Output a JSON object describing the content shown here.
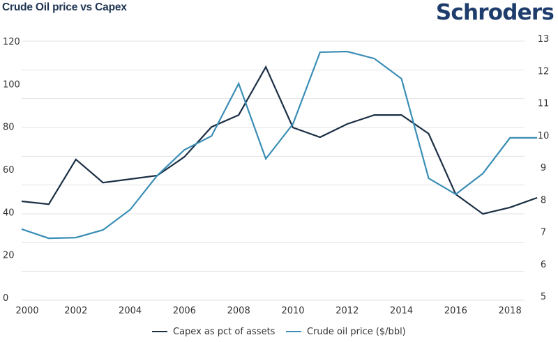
{
  "header": {
    "title": "Crude Oil price vs Capex",
    "logo_text": "Schroders"
  },
  "colors": {
    "capex": "#1b2f45",
    "oil": "#3a8db5",
    "logo": "#1e3c6c",
    "title": "#1d3350"
  },
  "chart_data": {
    "type": "line",
    "title": "Crude Oil price vs Capex",
    "xlabel": "",
    "ylabel_left": "",
    "ylabel_right": "",
    "x": [
      2000,
      2001,
      2002,
      2003,
      2004,
      2005,
      2006,
      2007,
      2008,
      2009,
      2010,
      2011,
      2012,
      2013,
      2014,
      2015,
      2016,
      2017,
      2018,
      2019
    ],
    "x_tick_labels": [
      "2000",
      "2002",
      "2004",
      "2006",
      "2008",
      "2010",
      "2012",
      "2014",
      "2016",
      "2018"
    ],
    "y_left_ticks": [
      "0",
      "20",
      "40",
      "60",
      "80",
      "100",
      "120"
    ],
    "y_right_ticks": [
      "5",
      "6",
      "7",
      "8",
      "9",
      "10",
      "11",
      "12",
      "13"
    ],
    "ylim_left": [
      0,
      120
    ],
    "ylim_right": [
      5,
      13
    ],
    "grid": true,
    "legend_position": "bottom-center",
    "series": [
      {
        "name": "Capex as pct of assets",
        "axis": "right",
        "color": "#1b2f45",
        "values": [
          7.94,
          7.85,
          9.24,
          8.52,
          8.63,
          8.74,
          9.32,
          10.25,
          10.62,
          12.11,
          10.23,
          9.93,
          10.34,
          10.62,
          10.62,
          10.04,
          8.16,
          7.55,
          7.75,
          8.05
        ]
      },
      {
        "name": "Crude oil price ($/bbl)",
        "axis": "left",
        "color": "#3a8db5",
        "values": [
          32.0,
          27.7,
          28.0,
          31.6,
          41.1,
          57.1,
          69.1,
          75.6,
          100.1,
          64.9,
          81.2,
          114.8,
          115.1,
          111.8,
          102.4,
          55.8,
          48.3,
          58.0,
          74.7,
          74.7
        ]
      }
    ]
  }
}
